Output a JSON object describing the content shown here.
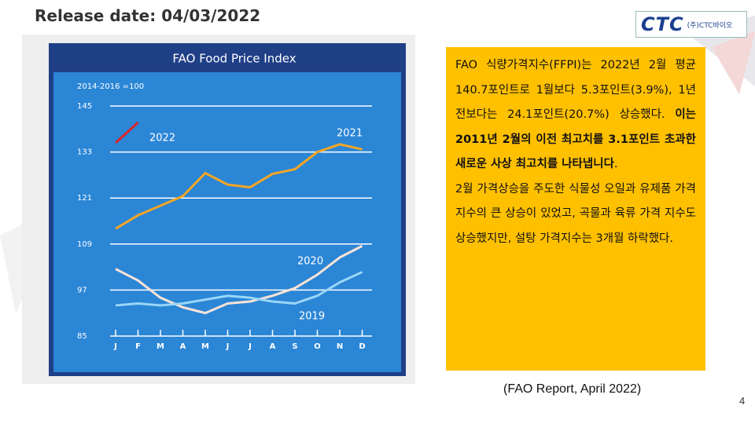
{
  "header": {
    "release": "Release date: 04/03/2022"
  },
  "logo": {
    "mark": "CTC",
    "name": "(주)CTC바이오"
  },
  "chart_data": {
    "type": "line",
    "title": "FAO Food Price Index",
    "subtitle": "2014-2016 =100",
    "categories": [
      "J",
      "F",
      "M",
      "A",
      "M",
      "J",
      "J",
      "A",
      "S",
      "O",
      "N",
      "D"
    ],
    "ylim": [
      85,
      145
    ],
    "yticks": [
      85,
      97,
      109,
      121,
      133,
      145
    ],
    "grid": true,
    "series": [
      {
        "name": "2022",
        "color": "#d9262e",
        "values": [
          135.4,
          140.7,
          null,
          null,
          null,
          null,
          null,
          null,
          null,
          null,
          null,
          null
        ]
      },
      {
        "name": "2021",
        "color": "#f5a623",
        "values": [
          113,
          116.5,
          119,
          121.5,
          127.5,
          124.5,
          123.8,
          127.3,
          128.5,
          133,
          135,
          133.7
        ]
      },
      {
        "name": "2020",
        "color": "#fde3d6",
        "values": [
          102.5,
          99.5,
          95,
          92.5,
          91,
          93.5,
          94,
          95.5,
          97.5,
          101,
          105.5,
          108.5
        ]
      },
      {
        "name": "2019",
        "color": "#9ad6f7",
        "values": [
          93,
          93.5,
          93,
          93.5,
          94.5,
          95.5,
          95,
          94,
          93.5,
          95.5,
          99,
          101.7
        ]
      }
    ]
  },
  "text_box": {
    "paragraphs": [
      [
        {
          "text": "FAO 식량가격지수(FFPI)는 2022년 2월 평균 140.7포인트로 1월보다 5.3포인트(3.9%), 1년 전보다는 24.1포인트(20.7%) 상승했다. ",
          "bold": false
        },
        {
          "text": "이는 2011년 2월의 이전 최고치를 3.1포인트 초과한 새로운 사상 최고치를 나타냅니다",
          "bold": true
        },
        {
          "text": ".",
          "bold": false
        }
      ],
      [
        {
          "text": "2월 가격상승을 주도한 식물성 오일과 유제품 가격 지수의 큰 상승이 있었고, 곡물과 육류 가격 지수도 상승했지만, 설탕 가격지수는 3개월 하락했다.",
          "bold": false
        }
      ]
    ]
  },
  "source": "(FAO Report, April 2022)",
  "page_number": "4"
}
